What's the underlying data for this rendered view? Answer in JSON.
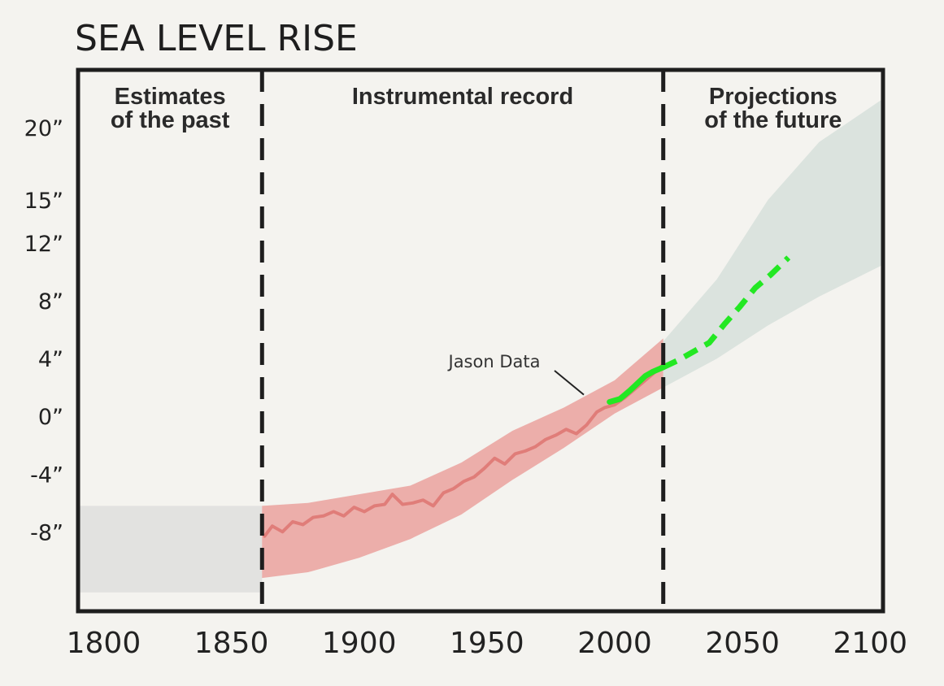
{
  "chart_data": {
    "type": "line",
    "title": "SEA LEVEL RISE",
    "x_ticks": [
      1800,
      1850,
      1900,
      1950,
      2000,
      2050,
      2100
    ],
    "x_tick_labels": [
      "1800",
      "1850",
      "1900",
      "1950",
      "2000",
      "2050",
      "2100"
    ],
    "y_ticks": [
      -8,
      -4,
      0,
      4,
      8,
      12,
      15,
      20
    ],
    "y_tick_labels": [
      "-8”",
      "-4”",
      "0”",
      "4”",
      "8”",
      "12”",
      "15”",
      "20”"
    ],
    "xlim": [
      1790,
      2105
    ],
    "ylim": [
      -13.5,
      24
    ],
    "regions": [
      {
        "label_lines": [
          "Estimates",
          "of the past"
        ],
        "x_start": 1790,
        "x_end": 1862
      },
      {
        "label_lines": [
          "Instrumental record"
        ],
        "x_start": 1862,
        "x_end": 2019
      },
      {
        "label_lines": [
          "Projections",
          "of the future"
        ],
        "x_start": 2019,
        "x_end": 2105
      }
    ],
    "dividers": [
      1862,
      2019
    ],
    "annotations": [
      {
        "text": "Jason Data",
        "x": 1993,
        "y": 1.5
      }
    ],
    "colors": {
      "past_band": "#e2e2e0",
      "record_band": "#ecaeaa",
      "record_line": "#e07d79",
      "projection_band": "#dbe3de",
      "jason_line": "#23e823",
      "axes": "#1e1e1e",
      "background": "#f4f3ef"
    },
    "series": [
      {
        "kind": "band",
        "role": "past-estimate",
        "x": [
          1790,
          1862
        ],
        "y_low": [
          -12.2,
          -12.2
        ],
        "y_high": [
          -6.2,
          -6.2
        ]
      },
      {
        "kind": "band",
        "role": "instrumental-uncertainty",
        "x": [
          1862,
          1880,
          1900,
          1920,
          1940,
          1960,
          1980,
          2000,
          2019
        ],
        "y_low": [
          -11.2,
          -10.8,
          -9.8,
          -8.5,
          -6.8,
          -4.4,
          -2.2,
          0.2,
          2.0
        ],
        "y_high": [
          -6.2,
          -6.0,
          -5.4,
          -4.8,
          -3.2,
          -1.0,
          0.6,
          2.5,
          5.4
        ]
      },
      {
        "kind": "line",
        "role": "instrumental-record",
        "x": [
          1863,
          1866,
          1870,
          1874,
          1878,
          1882,
          1886,
          1890,
          1894,
          1898,
          1902,
          1906,
          1910,
          1913,
          1917,
          1921,
          1925,
          1929,
          1933,
          1937,
          1941,
          1945,
          1949,
          1953,
          1957,
          1961,
          1965,
          1969,
          1973,
          1977,
          1981,
          1985,
          1989,
          1993,
          1996,
          2000,
          2004,
          2008,
          2012,
          2016,
          2019
        ],
        "y": [
          -8.3,
          -7.6,
          -8.0,
          -7.3,
          -7.5,
          -7.0,
          -6.9,
          -6.6,
          -6.9,
          -6.3,
          -6.6,
          -6.2,
          -6.1,
          -5.4,
          -6.1,
          -6.0,
          -5.8,
          -6.2,
          -5.3,
          -5.0,
          -4.5,
          -4.2,
          -3.6,
          -2.9,
          -3.3,
          -2.6,
          -2.4,
          -2.1,
          -1.6,
          -1.3,
          -0.9,
          -1.2,
          -0.6,
          0.3,
          0.6,
          0.8,
          1.3,
          1.9,
          2.5,
          3.1,
          3.6
        ]
      },
      {
        "kind": "line",
        "role": "jason-data",
        "x": [
          1998,
          2002,
          2006,
          2009,
          2012,
          2015,
          2019
        ],
        "y": [
          1.0,
          1.2,
          1.8,
          2.3,
          2.8,
          3.1,
          3.4
        ]
      },
      {
        "kind": "band",
        "role": "projection-range",
        "x": [
          2019,
          2040,
          2060,
          2080,
          2105
        ],
        "y_low": [
          2.0,
          4.0,
          6.3,
          8.3,
          10.5
        ],
        "y_high": [
          5.2,
          9.5,
          15.0,
          19.0,
          22.0
        ]
      },
      {
        "kind": "line",
        "role": "projection-median",
        "dashed": true,
        "x": [
          2019,
          2025,
          2031,
          2037,
          2043,
          2049,
          2055,
          2061,
          2068
        ],
        "y": [
          3.4,
          3.9,
          4.5,
          5.1,
          6.4,
          7.6,
          8.9,
          9.8,
          11.0
        ]
      }
    ]
  }
}
